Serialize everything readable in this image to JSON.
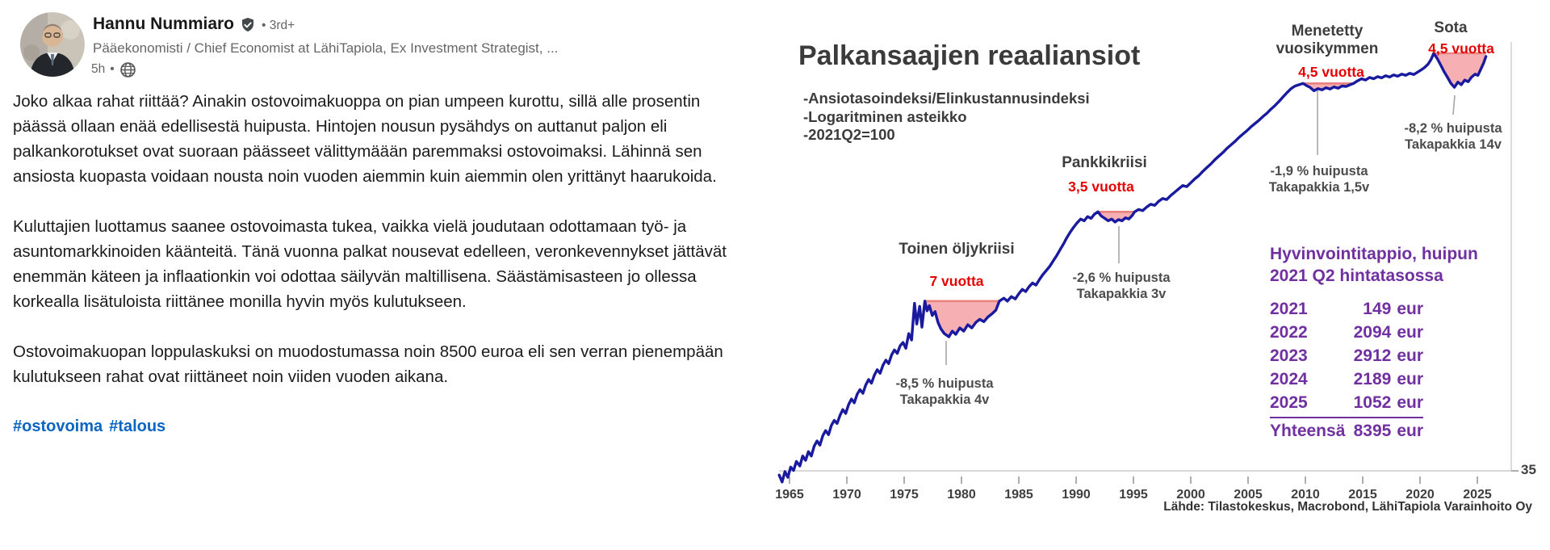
{
  "post": {
    "author": {
      "name": "Hannu Nummiaro",
      "badge": "verified",
      "separator": "•",
      "connection_degree": "3rd+",
      "headline": "Pääekonomisti / Chief Economist at LähiTapiola, Ex Investment Strategist, ...",
      "time": "5h"
    },
    "paragraphs": [
      "Joko alkaa rahat riittää? Ainakin ostovoimakuoppa on pian umpeen kurottu, sillä alle prosentin päässä ollaan enää edellisestä huipusta. Hintojen nousun pysähdys on auttanut paljon eli palkankorotukset ovat suoraan päässeet välittymäään paremmaksi ostovoimaksi. Lähinnä sen ansiosta kuopasta voidaan nousta noin vuoden aiemmin kuin aiemmin olen yrittänyt haarukoida.",
      "Kuluttajien luottamus saanee ostovoimasta tukea, vaikka vielä joudutaan odottamaan työ- ja asuntomarkkinoiden käänteitä. Tänä vuonna palkat nousevat edelleen, veronkevennykset jättävät enemmän käteen ja inflaationkin voi odottaa säilyvän maltillisena. Säästämisasteen jo ollessa korkealla lisätuloista riittänee monilla hyvin myös kulutukseen.",
      "Ostovoimakuopan loppulaskuksi on muodostumassa noin 8500 euroa eli sen verran pienempään kulutukseen rahat ovat riittäneet noin viiden vuoden aikana."
    ],
    "hashtags": [
      "#ostovoima",
      "#talous"
    ]
  },
  "chart_data": {
    "type": "line",
    "title": "Palkansaajien reaaliansiot",
    "subtitle_lines": [
      "-Ansiotasoindeksi/Elinkustannusindeksi",
      "-Logaritminen asteikko",
      "-2021Q2=100"
    ],
    "y_scale": "log",
    "x_ticks": [
      1965,
      1970,
      1975,
      1980,
      1985,
      1990,
      1995,
      2000,
      2005,
      2010,
      2015,
      2020,
      2025
    ],
    "y_tick_label": "35",
    "source": "Lähde: Tilastokeskus, Macrobond, LähiTapiola Varainhoito Oy",
    "series": [
      {
        "name": "Ansiotasoindeksi/Elinkustannusindeksi, 2021Q2=100",
        "points": [
          [
            1964.1,
            34.6
          ],
          [
            1964.35,
            34.0
          ],
          [
            1964.6,
            34.9
          ],
          [
            1964.85,
            34.4
          ],
          [
            1965.1,
            35.3
          ],
          [
            1965.35,
            35.0
          ],
          [
            1965.6,
            35.8
          ],
          [
            1965.9,
            35.4
          ],
          [
            1966.15,
            36.3
          ],
          [
            1966.4,
            35.9
          ],
          [
            1966.65,
            36.7
          ],
          [
            1966.9,
            36.3
          ],
          [
            1967.15,
            37.2
          ],
          [
            1967.4,
            37.7
          ],
          [
            1967.65,
            37.3
          ],
          [
            1967.9,
            38.2
          ],
          [
            1968.15,
            38.7
          ],
          [
            1968.4,
            38.3
          ],
          [
            1968.65,
            39.2
          ],
          [
            1968.9,
            39.7
          ],
          [
            1969.15,
            39.4
          ],
          [
            1969.4,
            40.2
          ],
          [
            1969.65,
            40.8
          ],
          [
            1969.9,
            40.4
          ],
          [
            1970.15,
            41.3
          ],
          [
            1970.4,
            41.9
          ],
          [
            1970.65,
            41.5
          ],
          [
            1970.9,
            42.4
          ],
          [
            1971.15,
            42.9
          ],
          [
            1971.4,
            42.5
          ],
          [
            1971.65,
            43.4
          ],
          [
            1971.9,
            44.0
          ],
          [
            1972.15,
            43.6
          ],
          [
            1972.4,
            44.5
          ],
          [
            1972.65,
            45.1
          ],
          [
            1972.9,
            44.7
          ],
          [
            1973.15,
            45.6
          ],
          [
            1973.4,
            46.2
          ],
          [
            1973.65,
            45.8
          ],
          [
            1973.9,
            46.8
          ],
          [
            1974.15,
            47.4
          ],
          [
            1974.4,
            47.0
          ],
          [
            1974.65,
            47.9
          ],
          [
            1974.9,
            48.3
          ],
          [
            1975.15,
            47.6
          ],
          [
            1975.4,
            49.4
          ],
          [
            1975.65,
            48.6
          ],
          [
            1975.9,
            53.3
          ],
          [
            1976.1,
            50.6
          ],
          [
            1976.35,
            52.9
          ],
          [
            1976.55,
            50.2
          ],
          [
            1976.8,
            53.6
          ],
          [
            1977.0,
            52.3
          ],
          [
            1977.2,
            53.0
          ],
          [
            1977.45,
            51.7
          ],
          [
            1977.7,
            52.2
          ],
          [
            1977.95,
            50.8
          ],
          [
            1978.2,
            50.0
          ],
          [
            1978.5,
            49.4
          ],
          [
            1978.9,
            49.0
          ],
          [
            1979.2,
            49.7
          ],
          [
            1979.5,
            49.3
          ],
          [
            1979.85,
            50.1
          ],
          [
            1980.2,
            49.7
          ],
          [
            1980.55,
            50.5
          ],
          [
            1980.9,
            50.1
          ],
          [
            1981.25,
            50.8
          ],
          [
            1981.6,
            51.2
          ],
          [
            1981.95,
            50.9
          ],
          [
            1982.3,
            51.5
          ],
          [
            1982.65,
            51.9
          ],
          [
            1983.0,
            52.4
          ],
          [
            1983.3,
            53.6
          ],
          [
            1983.7,
            54.0
          ],
          [
            1984.0,
            53.6
          ],
          [
            1984.35,
            54.2
          ],
          [
            1984.7,
            53.9
          ],
          [
            1985.0,
            54.6
          ],
          [
            1985.3,
            55.2
          ],
          [
            1985.6,
            54.9
          ],
          [
            1985.9,
            55.6
          ],
          [
            1986.2,
            56.1
          ],
          [
            1986.5,
            55.8
          ],
          [
            1986.8,
            56.6
          ],
          [
            1987.1,
            57.3
          ],
          [
            1987.4,
            57.9
          ],
          [
            1987.7,
            58.5
          ],
          [
            1988.0,
            59.3
          ],
          [
            1988.3,
            60.1
          ],
          [
            1988.6,
            61.0
          ],
          [
            1988.9,
            61.9
          ],
          [
            1989.2,
            62.9
          ],
          [
            1989.5,
            63.8
          ],
          [
            1989.8,
            64.6
          ],
          [
            1990.1,
            65.3
          ],
          [
            1990.4,
            65.9
          ],
          [
            1990.7,
            65.6
          ],
          [
            1991.0,
            66.3
          ],
          [
            1991.3,
            66.0
          ],
          [
            1991.6,
            66.7
          ],
          [
            1991.9,
            67.1
          ],
          [
            1992.2,
            66.4
          ],
          [
            1992.5,
            66.0
          ],
          [
            1992.8,
            65.6
          ],
          [
            1993.1,
            65.9
          ],
          [
            1993.4,
            65.4
          ],
          [
            1993.7,
            65.8
          ],
          [
            1994.0,
            65.6
          ],
          [
            1994.3,
            66.1
          ],
          [
            1994.6,
            65.9
          ],
          [
            1994.9,
            66.5
          ],
          [
            1995.1,
            67.1
          ],
          [
            1995.45,
            67.5
          ],
          [
            1995.8,
            67.3
          ],
          [
            1996.15,
            67.9
          ],
          [
            1996.5,
            68.4
          ],
          [
            1996.85,
            68.2
          ],
          [
            1997.2,
            68.9
          ],
          [
            1997.55,
            69.4
          ],
          [
            1997.9,
            69.2
          ],
          [
            1998.25,
            69.9
          ],
          [
            1998.6,
            70.5
          ],
          [
            1998.95,
            71.1
          ],
          [
            1999.3,
            71.7
          ],
          [
            1999.65,
            71.5
          ],
          [
            2000.0,
            72.2
          ],
          [
            2000.35,
            72.9
          ],
          [
            2000.7,
            73.5
          ],
          [
            2001.05,
            74.3
          ],
          [
            2001.4,
            75.0
          ],
          [
            2001.75,
            75.7
          ],
          [
            2002.1,
            76.5
          ],
          [
            2002.45,
            77.2
          ],
          [
            2002.8,
            77.9
          ],
          [
            2003.15,
            78.7
          ],
          [
            2003.5,
            79.4
          ],
          [
            2003.85,
            80.1
          ],
          [
            2004.2,
            80.9
          ],
          [
            2004.55,
            81.6
          ],
          [
            2004.9,
            82.3
          ],
          [
            2005.25,
            83.1
          ],
          [
            2005.6,
            83.8
          ],
          [
            2005.95,
            84.5
          ],
          [
            2006.3,
            85.3
          ],
          [
            2006.65,
            86.0
          ],
          [
            2007.0,
            86.9
          ],
          [
            2007.35,
            87.7
          ],
          [
            2007.7,
            88.6
          ],
          [
            2008.05,
            89.6
          ],
          [
            2008.4,
            90.6
          ],
          [
            2008.75,
            91.5
          ],
          [
            2009.1,
            92.1
          ],
          [
            2009.45,
            92.4
          ],
          [
            2009.8,
            92.7
          ],
          [
            2010.1,
            92.2
          ],
          [
            2010.4,
            91.8
          ],
          [
            2010.75,
            91.0
          ],
          [
            2011.1,
            91.5
          ],
          [
            2011.45,
            91.2
          ],
          [
            2011.8,
            91.7
          ],
          [
            2012.15,
            91.4
          ],
          [
            2012.5,
            91.9
          ],
          [
            2012.85,
            91.6
          ],
          [
            2013.2,
            92.1
          ],
          [
            2013.55,
            92.0
          ],
          [
            2013.9,
            92.4
          ],
          [
            2014.2,
            92.7
          ],
          [
            2014.55,
            93.3
          ],
          [
            2014.9,
            93.8
          ],
          [
            2015.25,
            93.5
          ],
          [
            2015.6,
            94.1
          ],
          [
            2015.95,
            93.8
          ],
          [
            2016.3,
            94.3
          ],
          [
            2016.65,
            94.0
          ],
          [
            2017.0,
            94.5
          ],
          [
            2017.35,
            94.2
          ],
          [
            2017.7,
            94.7
          ],
          [
            2018.05,
            94.4
          ],
          [
            2018.4,
            94.9
          ],
          [
            2018.75,
            94.6
          ],
          [
            2019.1,
            95.1
          ],
          [
            2019.45,
            94.8
          ],
          [
            2019.8,
            95.4
          ],
          [
            2020.1,
            95.9
          ],
          [
            2020.4,
            96.5
          ],
          [
            2020.7,
            97.3
          ],
          [
            2020.95,
            98.4
          ],
          [
            2021.2,
            100.0
          ],
          [
            2021.5,
            98.7
          ],
          [
            2021.8,
            97.1
          ],
          [
            2022.1,
            95.5
          ],
          [
            2022.4,
            94.1
          ],
          [
            2022.7,
            92.7
          ],
          [
            2023.0,
            91.8
          ],
          [
            2023.3,
            93.0
          ],
          [
            2023.6,
            92.4
          ],
          [
            2023.9,
            93.5
          ],
          [
            2024.2,
            93.1
          ],
          [
            2024.5,
            94.2
          ],
          [
            2024.8,
            94.9
          ],
          [
            2025.05,
            94.6
          ],
          [
            2025.3,
            96.1
          ],
          [
            2025.55,
            97.6
          ],
          [
            2025.75,
            99.2
          ]
        ]
      }
    ],
    "regions": [
      {
        "label": "Toinen öljykriisi",
        "duration_label": "7 vuotta",
        "note_lines": [
          "-8,5 % huipusta",
          "Takapakkia 4v"
        ],
        "start": 1976.8,
        "end": 1983.3,
        "peak_value": 53.6
      },
      {
        "label": "Pankkikriisi",
        "duration_label": "3,5 vuotta",
        "note_lines": [
          "-2,6 % huipusta",
          "Takapakkia 3v"
        ],
        "start": 1991.9,
        "end": 1995.1,
        "peak_value": 67.1
      },
      {
        "label": "Menetetty\nvuosikymmen",
        "duration_label": "4,5 vuotta",
        "note_lines": [
          "-1,9 % huipusta",
          "Takapakkia 1,5v"
        ],
        "start": 2009.8,
        "end": 2014.2,
        "peak_value": 92.7
      },
      {
        "label": "Sota",
        "duration_label": "4,5 vuotta",
        "note_lines": [
          "-8,2 % huipusta",
          "Takapakkia 14v"
        ],
        "start": 2021.2,
        "end": 2025.75,
        "peak_value": 100
      }
    ],
    "welfare_table": {
      "title_lines": [
        "Hyvinvointitappio, huipun",
        "2021 Q2 hintatasossa"
      ],
      "unit": "eur",
      "rows": [
        [
          "2021",
          "149"
        ],
        [
          "2022",
          "2094"
        ],
        [
          "2023",
          "2912"
        ],
        [
          "2024",
          "2189"
        ],
        [
          "2025",
          "1052"
        ]
      ],
      "underline_row_index": 4,
      "total_label": "Yhteensä",
      "total_value": "8395"
    },
    "colors": {
      "line": "#1a1a9e",
      "region_fill": "#f6b0b3",
      "region_edge": "#e8837f",
      "red": "#e60000",
      "purple": "#7030a0",
      "axis": "#cccccc",
      "label": "#3d3d3d",
      "connector": "#a6a6a6",
      "hashtag_blue": "#0a66c2"
    }
  }
}
